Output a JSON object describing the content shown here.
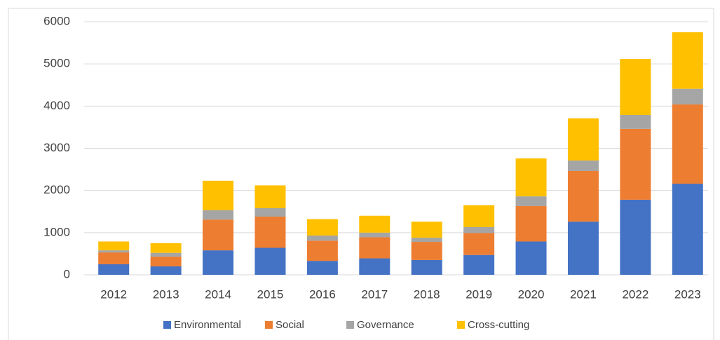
{
  "chart_data": {
    "type": "stacked_bar",
    "categories": [
      "2012",
      "2013",
      "2014",
      "2015",
      "2016",
      "2017",
      "2018",
      "2019",
      "2020",
      "2021",
      "2022",
      "2023"
    ],
    "series": [
      {
        "name": "Environmental",
        "color": "#4472c4",
        "values": [
          250,
          200,
          580,
          640,
          330,
          390,
          350,
          470,
          790,
          1260,
          1780,
          2160
        ]
      },
      {
        "name": "Social",
        "color": "#ed7d31",
        "values": [
          280,
          230,
          730,
          740,
          480,
          500,
          430,
          520,
          840,
          1200,
          1680,
          1880
        ]
      },
      {
        "name": "Governance",
        "color": "#a5a5a5",
        "values": [
          50,
          90,
          220,
          200,
          120,
          110,
          100,
          140,
          230,
          250,
          330,
          370
        ]
      },
      {
        "name": "Cross-cutting",
        "color": "#ffc000",
        "values": [
          210,
          230,
          700,
          540,
          390,
          400,
          380,
          520,
          900,
          1000,
          1330,
          1340
        ]
      }
    ],
    "ylim": [
      0,
      6000
    ],
    "yticks": [
      0,
      1000,
      2000,
      3000,
      4000,
      5000,
      6000
    ],
    "grid": true,
    "legend": "bottom"
  }
}
